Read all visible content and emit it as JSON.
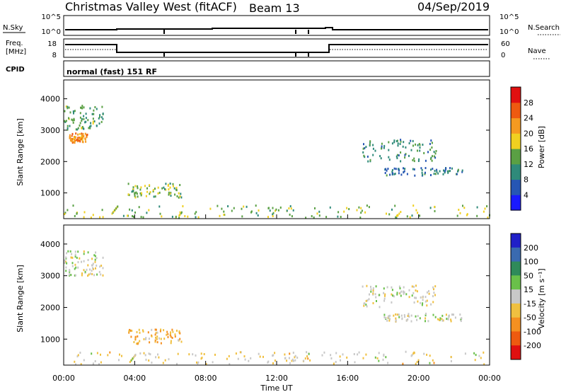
{
  "header": {
    "title": "Christmas Valley West (fitACF)",
    "beam": "Beam 13",
    "date": "04/Sep/2019"
  },
  "strips": {
    "nsky_label": "N.Sky",
    "nsearch_label": "N.Search",
    "nsky_ticks": [
      "10^5",
      "10^0"
    ],
    "nsky_ticks_right": [
      "10^5",
      "10^0"
    ],
    "freq_label_1": "Freq.",
    "freq_label_2": "[MHz]",
    "freq_ticks": [
      "18",
      "8"
    ],
    "nave_label": "Nave",
    "nave_ticks": [
      "60",
      "0"
    ],
    "cpid_label": "CPID",
    "cpid_text": "normal (fast) 151 RF"
  },
  "axes": {
    "xlabel": "Time UT",
    "xticks": [
      "00:00",
      "04:00",
      "08:00",
      "12:00",
      "16:00",
      "20:00",
      "00:00"
    ],
    "ylabel": "Slant Range [km]",
    "yticks": [
      "1000",
      "2000",
      "3000",
      "4000"
    ]
  },
  "colorbars": {
    "power": {
      "label": "Power [dB]",
      "ticks": [
        "4",
        "8",
        "12",
        "16",
        "20",
        "24",
        "28"
      ],
      "colors": [
        "#1a1aff",
        "#2656b4",
        "#2f8a7a",
        "#5aa044",
        "#f0d020",
        "#f59a20",
        "#ee5a10",
        "#e01010"
      ]
    },
    "velocity": {
      "label": "Velocity [m s⁻¹]",
      "ticks": [
        "200",
        "100",
        "50",
        "15",
        "-15",
        "-50",
        "-100",
        "-200"
      ],
      "colors": [
        "#2020c8",
        "#3a6ab0",
        "#2f8a5a",
        "#6ac04a",
        "#c8c8c8",
        "#f0c040",
        "#f59020",
        "#ee5a10",
        "#e01010"
      ]
    }
  },
  "chart_data": [
    {
      "type": "heatmap",
      "name": "power",
      "xlabel": "Time UT",
      "ylabel": "Slant Range [km]",
      "xlim": [
        "00:00",
        "24:00"
      ],
      "ylim": [
        180,
        4600
      ],
      "colorbar": "Power [dB]",
      "colorbar_range": [
        0,
        30
      ],
      "patches": [
        {
          "t0": 0.0,
          "t1": 2.2,
          "r0": 3000,
          "r1": 3800,
          "value": 12
        },
        {
          "t0": 0.3,
          "t1": 1.3,
          "r0": 2600,
          "r1": 2900,
          "value": 22
        },
        {
          "t0": 3.6,
          "t1": 6.6,
          "r0": 850,
          "r1": 1300,
          "value": 14
        },
        {
          "t0": 16.8,
          "t1": 21.0,
          "r0": 2000,
          "r1": 2700,
          "value": 10
        },
        {
          "t0": 18.0,
          "t1": 22.5,
          "r0": 1550,
          "r1": 1800,
          "value": 8
        },
        {
          "t0": 0.0,
          "t1": 24.0,
          "r0": 200,
          "r1": 600,
          "value": 14
        }
      ]
    },
    {
      "type": "heatmap",
      "name": "velocity",
      "xlabel": "Time UT",
      "ylabel": "Slant Range [km]",
      "xlim": [
        "00:00",
        "24:00"
      ],
      "ylim": [
        180,
        4600
      ],
      "colorbar": "Velocity [m s-1]",
      "colorbar_range": [
        -200,
        200
      ],
      "patches": [
        {
          "t0": 0.0,
          "t1": 2.2,
          "r0": 3000,
          "r1": 3800,
          "value": 0
        },
        {
          "t0": 3.6,
          "t1": 6.6,
          "r0": 850,
          "r1": 1300,
          "value": -60
        },
        {
          "t0": 16.8,
          "t1": 21.0,
          "r0": 2000,
          "r1": 2700,
          "value": 0
        },
        {
          "t0": 18.0,
          "t1": 22.5,
          "r0": 1550,
          "r1": 1800,
          "value": 0
        },
        {
          "t0": 0.0,
          "t1": 24.0,
          "r0": 200,
          "r1": 600,
          "value": -20
        }
      ]
    }
  ]
}
